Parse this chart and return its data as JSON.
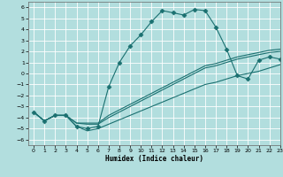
{
  "xlabel": "Humidex (Indice chaleur)",
  "background_color": "#b2dede",
  "grid_color": "#ffffff",
  "line_color": "#1a7070",
  "xlim": [
    -0.5,
    23
  ],
  "ylim": [
    -6.5,
    6.5
  ],
  "xticks": [
    0,
    1,
    2,
    3,
    4,
    5,
    6,
    7,
    8,
    9,
    10,
    11,
    12,
    13,
    14,
    15,
    16,
    17,
    18,
    19,
    20,
    21,
    22,
    23
  ],
  "yticks": [
    -6,
    -5,
    -4,
    -3,
    -2,
    -1,
    0,
    1,
    2,
    3,
    4,
    5,
    6
  ],
  "series": [
    {
      "x": [
        0,
        1,
        2,
        3,
        4,
        5,
        6,
        7,
        8,
        9,
        10,
        11,
        12,
        13,
        14,
        15,
        16,
        17,
        18,
        19,
        20,
        21,
        22,
        23
      ],
      "y": [
        -3.5,
        -4.3,
        -3.8,
        -3.8,
        -4.8,
        -5.0,
        -4.8,
        -1.2,
        1.0,
        2.5,
        3.5,
        4.7,
        5.7,
        5.5,
        5.3,
        5.8,
        5.7,
        4.2,
        2.2,
        -0.2,
        -0.5,
        1.2,
        1.5,
        1.3
      ],
      "marker": "D",
      "markersize": 2.5,
      "has_marker": true
    },
    {
      "x": [
        0,
        1,
        2,
        3,
        4,
        5,
        6,
        7,
        8,
        9,
        10,
        11,
        12,
        13,
        14,
        15,
        16,
        17,
        18,
        19,
        20,
        21,
        22,
        23
      ],
      "y": [
        -3.5,
        -4.3,
        -3.8,
        -3.8,
        -4.5,
        -4.5,
        -4.5,
        -3.8,
        -3.3,
        -2.8,
        -2.3,
        -1.8,
        -1.3,
        -0.8,
        -0.3,
        0.2,
        0.7,
        0.9,
        1.2,
        1.5,
        1.7,
        1.9,
        2.1,
        2.2
      ],
      "marker": null,
      "has_marker": false
    },
    {
      "x": [
        0,
        1,
        2,
        3,
        4,
        5,
        6,
        7,
        8,
        9,
        10,
        11,
        12,
        13,
        14,
        15,
        16,
        17,
        18,
        19,
        20,
        21,
        22,
        23
      ],
      "y": [
        -3.5,
        -4.3,
        -3.8,
        -3.8,
        -4.5,
        -4.6,
        -4.6,
        -4.0,
        -3.5,
        -3.0,
        -2.5,
        -2.0,
        -1.5,
        -1.0,
        -0.5,
        0.0,
        0.5,
        0.7,
        1.0,
        1.3,
        1.5,
        1.7,
        1.9,
        2.0
      ],
      "marker": null,
      "has_marker": false
    },
    {
      "x": [
        0,
        1,
        2,
        3,
        4,
        5,
        6,
        7,
        8,
        9,
        10,
        11,
        12,
        13,
        14,
        15,
        16,
        17,
        18,
        19,
        20,
        21,
        22,
        23
      ],
      "y": [
        -3.5,
        -4.3,
        -3.8,
        -3.8,
        -4.8,
        -5.2,
        -5.0,
        -4.6,
        -4.2,
        -3.8,
        -3.4,
        -3.0,
        -2.6,
        -2.2,
        -1.8,
        -1.4,
        -1.0,
        -0.8,
        -0.5,
        -0.2,
        0.0,
        0.2,
        0.5,
        0.8
      ],
      "marker": null,
      "has_marker": false
    }
  ]
}
